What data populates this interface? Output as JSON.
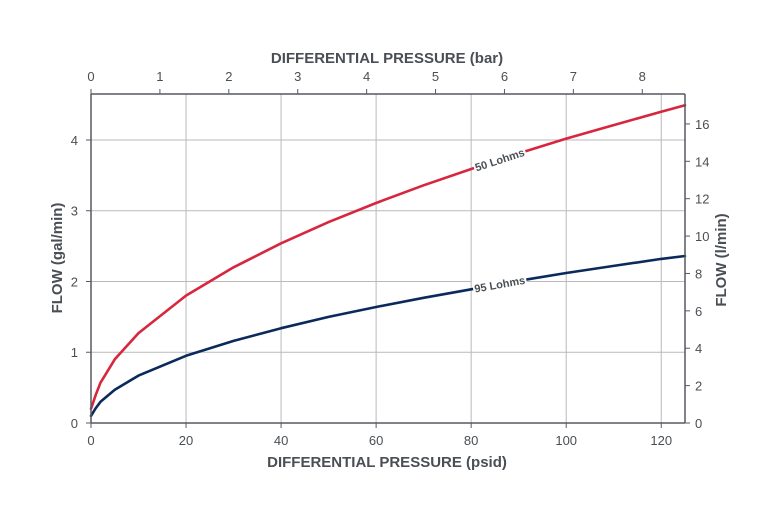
{
  "chart_data": {
    "type": "line",
    "title": "",
    "xlabel": "DIFFERENTIAL PRESSURE (psid)",
    "ylabel": "FLOW (gal/min)",
    "x2label": "DIFFERENTIAL PRESSURE (bar)",
    "y2label": "FLOW (l/min)",
    "xlim": [
      0,
      125
    ],
    "ylim": [
      0,
      4.65
    ],
    "x2lim": [
      0,
      8.62
    ],
    "y2lim": [
      0,
      17.6
    ],
    "x_ticks": [
      "0",
      "20",
      "40",
      "60",
      "80",
      "100",
      "120"
    ],
    "y_ticks": [
      "0",
      "1",
      "2",
      "3",
      "4"
    ],
    "x2_ticks": [
      "0",
      "1",
      "2",
      "3",
      "4",
      "5",
      "6",
      "7",
      "8"
    ],
    "y2_ticks": [
      "0",
      "2",
      "4",
      "6",
      "8",
      "10",
      "12",
      "14",
      "16"
    ],
    "grid": true,
    "legend": "none",
    "series": [
      {
        "label": "50 Lohms",
        "color": "#d7263d",
        "x": [
          0,
          1,
          2,
          5,
          10,
          20,
          30,
          40,
          50,
          60,
          70,
          80,
          90,
          100,
          110,
          120,
          125
        ],
        "y": [
          0.2,
          0.4,
          0.57,
          0.9,
          1.27,
          1.8,
          2.2,
          2.54,
          2.84,
          3.11,
          3.36,
          3.59,
          3.81,
          4.02,
          4.21,
          4.4,
          4.49
        ]
      },
      {
        "label": "95 Lohms",
        "color": "#0b2a5c",
        "x": [
          0,
          1,
          2,
          5,
          10,
          20,
          30,
          40,
          50,
          60,
          70,
          80,
          90,
          100,
          110,
          120,
          125
        ],
        "y": [
          0.1,
          0.21,
          0.3,
          0.47,
          0.67,
          0.95,
          1.16,
          1.34,
          1.5,
          1.64,
          1.77,
          1.89,
          2.01,
          2.12,
          2.22,
          2.32,
          2.36
        ]
      }
    ]
  }
}
